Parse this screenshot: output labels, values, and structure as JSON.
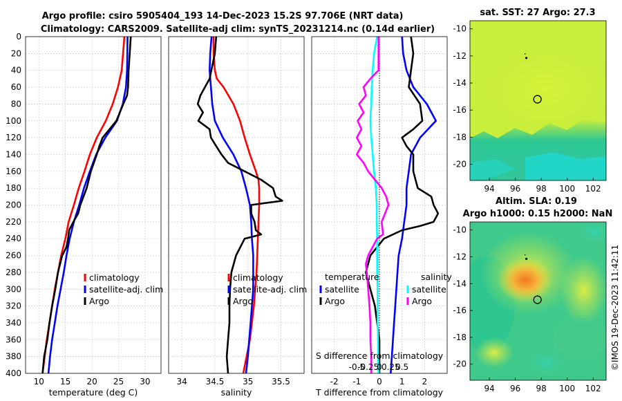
{
  "title": {
    "line1": "Argo profile: csiro 5905404_193 14-Dec-2023 15.2S 97.706E (NRT data)",
    "line2": "Climatology: CARS2009. Satellite-adj clim: synTS_20231214.nc (0.14d earlier)"
  },
  "watermark": "©IMOS 19-Dec-2023 11:42:11",
  "colors": {
    "climatology": "#ff0000",
    "satellite": "#0000ff",
    "argo": "#000000",
    "sat_salinity": "#00ffff",
    "argo_salinity": "#ff00ff"
  },
  "chart_data": [
    {
      "type": "line",
      "id": "temperature",
      "xlabel": "temperature (deg C)",
      "xlim": [
        7.5,
        33
      ],
      "ylim": [
        0,
        400
      ],
      "xticks": [
        10,
        15,
        20,
        25,
        30
      ],
      "yticks": [
        0,
        20,
        40,
        60,
        80,
        100,
        120,
        140,
        160,
        180,
        200,
        220,
        240,
        260,
        280,
        300,
        320,
        340,
        360,
        380,
        400
      ],
      "series": [
        {
          "name": "climatology",
          "color": "#ff0000",
          "depth": [
            0,
            40,
            60,
            80,
            100,
            120,
            140,
            160,
            180,
            200,
            220,
            240,
            260,
            280,
            300,
            320,
            340,
            360,
            380,
            400
          ],
          "values": [
            26.1,
            25.6,
            24.9,
            23.9,
            22.6,
            20.9,
            19.6,
            18.6,
            17.5,
            16.6,
            15.6,
            15.0,
            14.2,
            13.6,
            13.0,
            12.5,
            12.0,
            11.5,
            11.1,
            10.7
          ]
        },
        {
          "name": "satellite-adj. clim",
          "color": "#0000ff",
          "depth": [
            0,
            40,
            60,
            80,
            100,
            120,
            140,
            160,
            180,
            200,
            220,
            240,
            260,
            280,
            300,
            320,
            340,
            360,
            380,
            400
          ],
          "values": [
            26.7,
            26.6,
            26.4,
            25.8,
            24.7,
            22.5,
            20.8,
            19.6,
            18.5,
            17.6,
            16.6,
            15.8,
            15.2,
            14.7,
            14.1,
            13.5,
            13.0,
            12.5,
            12.1,
            11.8
          ]
        },
        {
          "name": "Argo",
          "color": "#000000",
          "depth": [
            0,
            20,
            40,
            60,
            70,
            80,
            100,
            120,
            130,
            140,
            160,
            180,
            200,
            210,
            220,
            230,
            240,
            250,
            260,
            280,
            300,
            320,
            340,
            360,
            380,
            400
          ],
          "values": [
            27.3,
            27.1,
            26.9,
            26.8,
            26.6,
            25.9,
            24.6,
            22.0,
            21.4,
            20.9,
            19.8,
            19.0,
            17.8,
            17.4,
            16.5,
            15.7,
            15.5,
            15.2,
            14.4,
            13.6,
            13.1,
            12.5,
            12.0,
            11.6,
            11.0,
            10.7
          ]
        }
      ],
      "legend": [
        "climatology",
        "satellite-adj. clim",
        "Argo"
      ]
    },
    {
      "type": "line",
      "id": "salinity",
      "xlabel": "salinity",
      "xlim": [
        33.8,
        35.85
      ],
      "ylim": [
        0,
        400
      ],
      "xticks": [
        34,
        34.5,
        35,
        35.5
      ],
      "series": [
        {
          "name": "climatology",
          "color": "#ff0000",
          "depth": [
            0,
            20,
            40,
            50,
            60,
            80,
            100,
            120,
            140,
            160,
            170,
            180,
            200,
            220,
            240,
            260,
            280,
            300,
            320,
            340,
            360,
            380,
            400
          ],
          "values": [
            34.48,
            34.48,
            34.5,
            34.53,
            34.63,
            34.78,
            34.88,
            34.95,
            35.03,
            35.12,
            35.16,
            35.17,
            35.17,
            35.16,
            35.15,
            35.14,
            35.13,
            35.11,
            35.09,
            35.06,
            35.03,
            34.98,
            34.93
          ]
        },
        {
          "name": "satellite-adj. clim",
          "color": "#0000ff",
          "depth": [
            0,
            20,
            40,
            60,
            80,
            100,
            120,
            140,
            160,
            180,
            200,
            220,
            240,
            260,
            280,
            300,
            320,
            340,
            360,
            380,
            400
          ],
          "values": [
            34.45,
            34.43,
            34.42,
            34.44,
            34.46,
            34.5,
            34.62,
            34.78,
            34.9,
            34.97,
            35.03,
            35.05,
            35.06,
            35.08,
            35.08,
            35.08,
            35.06,
            35.04,
            35.02,
            35.0,
            34.97
          ]
        },
        {
          "name": "Argo",
          "color": "#000000",
          "depth": [
            0,
            20,
            50,
            60,
            70,
            80,
            90,
            100,
            110,
            120,
            130,
            140,
            150,
            160,
            170,
            180,
            190,
            195,
            200,
            210,
            220,
            230,
            235,
            240,
            260,
            280,
            300,
            320,
            340,
            360,
            380,
            400
          ],
          "values": [
            34.52,
            34.5,
            34.42,
            34.35,
            34.28,
            34.24,
            34.32,
            34.25,
            34.42,
            34.44,
            34.52,
            34.6,
            34.7,
            34.95,
            35.2,
            35.38,
            35.42,
            35.52,
            35.05,
            35.05,
            35.1,
            35.12,
            35.2,
            34.95,
            34.82,
            34.75,
            34.73,
            34.72,
            34.72,
            34.7,
            34.68,
            34.7
          ]
        }
      ],
      "legend": [
        "climatology",
        "satellite-adj. clim",
        "Argo"
      ]
    },
    {
      "type": "line",
      "id": "difference",
      "xlabel": "T difference from climatology",
      "xlabel_top": "S difference from climatology",
      "xlim": [
        -3,
        3
      ],
      "ylim": [
        0,
        400
      ],
      "xticks_T": [
        -2,
        -1,
        0,
        1,
        2
      ],
      "xticks_S": [
        "-0.5",
        "-0.25",
        "0",
        "0.25",
        "0.5"
      ],
      "xticks_S_values": [
        -0.5,
        -0.25,
        0,
        0.25,
        0.5
      ],
      "s_scale": 2,
      "series": [
        {
          "name": "temperature satellite",
          "color": "#0000ff",
          "quantity": "T",
          "depth": [
            0,
            20,
            40,
            60,
            80,
            100,
            120,
            140,
            160,
            180,
            200,
            220,
            240,
            260,
            280,
            300,
            320,
            340,
            360,
            380,
            400
          ],
          "values": [
            1.0,
            1.05,
            1.2,
            1.5,
            2.1,
            2.5,
            1.8,
            1.4,
            1.3,
            1.2,
            1.2,
            1.1,
            1.0,
            0.85,
            0.8,
            0.75,
            0.7,
            0.65,
            0.6,
            0.55,
            0.5
          ]
        },
        {
          "name": "temperature Argo",
          "color": "#000000",
          "quantity": "T",
          "depth": [
            0,
            20,
            40,
            60,
            80,
            100,
            110,
            120,
            130,
            140,
            160,
            180,
            190,
            200,
            210,
            220,
            225,
            230,
            240,
            260,
            280,
            300,
            320,
            340,
            360,
            380,
            400
          ],
          "values": [
            1.4,
            1.5,
            1.4,
            1.3,
            1.8,
            1.9,
            1.5,
            1.0,
            1.2,
            1.5,
            1.5,
            1.7,
            2.3,
            2.4,
            2.6,
            2.4,
            1.8,
            1.0,
            0.2,
            -0.4,
            -0.6,
            -0.4,
            -0.2,
            -0.1,
            0.0,
            0.0,
            0.0
          ]
        },
        {
          "name": "salinity satellite",
          "color": "#00ffff",
          "quantity": "S",
          "depth": [
            0,
            20,
            40,
            60,
            80,
            100,
            120,
            140,
            160,
            180,
            200,
            220,
            240,
            260,
            280,
            300,
            320,
            340,
            360,
            380,
            400
          ],
          "values": [
            -0.05,
            -0.12,
            -0.15,
            -0.17,
            -0.18,
            -0.2,
            -0.18,
            -0.15,
            -0.12,
            -0.08,
            -0.06,
            -0.06,
            -0.05,
            -0.05,
            -0.05,
            -0.04,
            -0.04,
            -0.04,
            -0.03,
            -0.03,
            -0.02
          ]
        },
        {
          "name": "salinity Argo",
          "color": "#ff00ff",
          "quantity": "S",
          "depth": [
            0,
            10,
            40,
            50,
            60,
            70,
            80,
            90,
            100,
            110,
            120,
            130,
            140,
            150,
            160,
            170,
            180,
            190,
            200,
            220,
            235,
            240,
            250,
            260,
            270,
            280,
            300,
            320,
            340,
            360,
            380,
            400
          ],
          "values": [
            -0.02,
            -0.02,
            -0.02,
            -0.2,
            -0.35,
            -0.3,
            -0.45,
            -0.35,
            -0.48,
            -0.4,
            -0.5,
            -0.4,
            -0.5,
            -0.35,
            -0.25,
            -0.1,
            0.05,
            0.15,
            0.2,
            0.05,
            0.08,
            -0.05,
            -0.15,
            -0.25,
            -0.3,
            -0.28,
            -0.25,
            -0.22,
            -0.2,
            -0.2,
            -0.18,
            -0.18
          ]
        }
      ],
      "legend_temperature": {
        "heading": "temperature",
        "items": [
          "satellite",
          "Argo"
        ]
      },
      "legend_salinity": {
        "heading": "salinity",
        "items": [
          "satellite",
          "Argo"
        ]
      }
    },
    {
      "type": "heatmap",
      "id": "sst_map",
      "title": "sat. SST: 27 Argo: 27.3",
      "xlim": [
        92.5,
        103
      ],
      "ylim": [
        -21.2,
        -9.4
      ],
      "xticks": [
        94,
        96,
        98,
        100,
        102
      ],
      "yticks": [
        -10,
        -12,
        -14,
        -16,
        -18,
        -20
      ],
      "marker": {
        "lon": 97.706,
        "lat": -15.2
      }
    },
    {
      "type": "heatmap",
      "id": "sla_map",
      "title_line1": "Altim. SLA: 0.19",
      "title_line2": "Argo h1000: 0.15 h2000: NaN",
      "xlim": [
        92.5,
        103
      ],
      "ylim": [
        -21.2,
        -9.4
      ],
      "xticks": [
        94,
        96,
        98,
        100,
        102
      ],
      "yticks": [
        -10,
        -12,
        -14,
        -16,
        -18,
        -20
      ],
      "marker": {
        "lon": 97.706,
        "lat": -15.2
      }
    }
  ]
}
